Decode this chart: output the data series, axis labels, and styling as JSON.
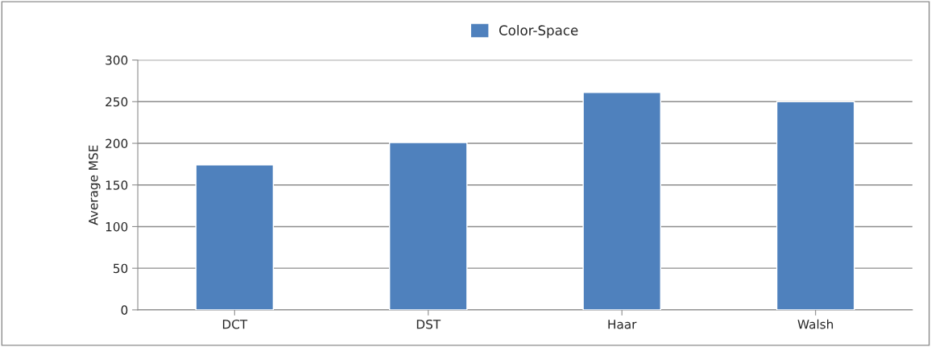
{
  "chart_data": {
    "type": "bar",
    "ylabel": "Average MSE",
    "categories": [
      "DCT",
      "DST",
      "Haar",
      "Walsh"
    ],
    "series": [
      {
        "name": "Color-Space",
        "color": "#4f81bd",
        "values": [
          174,
          201,
          261,
          250
        ]
      }
    ],
    "ylim": [
      0,
      300
    ],
    "yticks": [
      0,
      50,
      100,
      150,
      200,
      250,
      300
    ],
    "grid": "y",
    "legend": "top"
  }
}
